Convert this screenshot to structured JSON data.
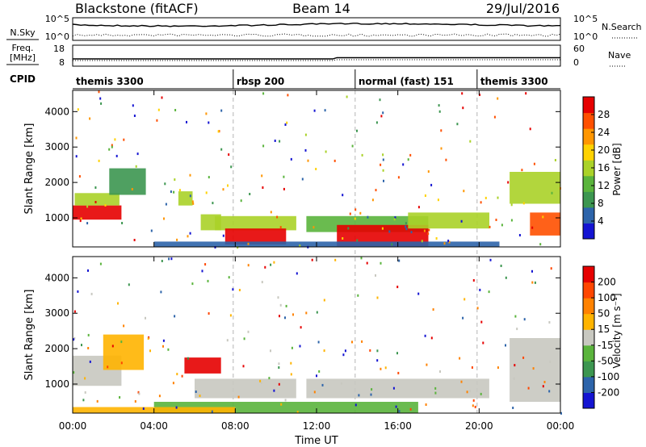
{
  "header": {
    "site": "Blackstone (fitACF)",
    "beam": "Beam 14",
    "date": "29/Jul/2016"
  },
  "colors": {
    "scale_power": [
      "#1414d2",
      "#2d64aa",
      "#3c9650",
      "#5ab43c",
      "#aad228",
      "#ffd200",
      "#ff9600",
      "#ff5000",
      "#e60000"
    ],
    "scale_velocity": [
      "#1414d2",
      "#2d64aa",
      "#3c9650",
      "#5ab43c",
      "#c8c8c0",
      "#ffb400",
      "#ff8200",
      "#ff4600",
      "#e60000"
    ],
    "cpid_divider": "#b4b4b4"
  },
  "info_panels": {
    "left_labels": {
      "nsky": "N.Sky",
      "freq": "Freq.",
      "freq_unit": "[MHz]",
      "cpid": "CPID"
    },
    "right_labels": {
      "nsearch": "N.Search",
      "nave": "Nave"
    },
    "noise_ticks_left": [
      "10^5",
      "10^0"
    ],
    "noise_ticks_right": [
      "10^5",
      "10^0"
    ],
    "freq_ticks": [
      "18",
      "8"
    ],
    "nave_ticks": [
      "60",
      "0"
    ]
  },
  "cpid_segments": [
    {
      "label": "themis 3300",
      "start_hour": 0.0,
      "end_hour": 7.9
    },
    {
      "label": "rbsp 200",
      "start_hour": 7.9,
      "end_hour": 13.9
    },
    {
      "label": "normal (fast) 151",
      "start_hour": 13.9,
      "end_hour": 19.9
    },
    {
      "label": "themis 3300",
      "start_hour": 19.9,
      "end_hour": 24.0
    }
  ],
  "power_panel": {
    "ylabel": "Slant Range [km]",
    "colorbar_label": "Power [dB]",
    "colorbar_ticks": [
      "28",
      "24",
      "20",
      "16",
      "12",
      "8",
      "4"
    ]
  },
  "velocity_panel": {
    "ylabel": "Slant Range [km]",
    "colorbar_label": "Velocity [m s⁻¹]",
    "colorbar_ticks": [
      "200",
      "100",
      "50",
      "15",
      "-15",
      "-50",
      "-100",
      "-200"
    ]
  },
  "chart_data": {
    "type": "heatmap",
    "xlabel": "Time UT",
    "ylabel": "Slant Range [km]",
    "x_ticks": [
      "00:00",
      "04:00",
      "08:00",
      "12:00",
      "16:00",
      "20:00",
      "00:00"
    ],
    "y_ticks": [
      "1000",
      "2000",
      "3000",
      "4000"
    ],
    "xlim": [
      0,
      24
    ],
    "ylim": [
      180,
      4600
    ],
    "power_regions": [
      {
        "t": [
          0.0,
          2.4
        ],
        "r": [
          950,
          1350
        ],
        "level": 8
      },
      {
        "t": [
          0.1,
          2.3
        ],
        "r": [
          1350,
          1700
        ],
        "level": 4
      },
      {
        "t": [
          1.8,
          3.6
        ],
        "r": [
          1650,
          2400
        ],
        "level": 2
      },
      {
        "t": [
          5.2,
          5.9
        ],
        "r": [
          1350,
          1750
        ],
        "level": 4
      },
      {
        "t": [
          6.3,
          7.3
        ],
        "r": [
          650,
          1100
        ],
        "level": 4
      },
      {
        "t": [
          7.0,
          11.0
        ],
        "r": [
          650,
          1050
        ],
        "level": 4
      },
      {
        "t": [
          7.5,
          10.5
        ],
        "r": [
          250,
          700
        ],
        "level": 8
      },
      {
        "t": [
          11.5,
          17.5
        ],
        "r": [
          600,
          1050
        ],
        "level": 3
      },
      {
        "t": [
          13.0,
          17.5
        ],
        "r": [
          200,
          800
        ],
        "level": 8
      },
      {
        "t": [
          16.5,
          20.5
        ],
        "r": [
          700,
          1150
        ],
        "level": 4
      },
      {
        "t": [
          21.5,
          24.0
        ],
        "r": [
          1400,
          2300
        ],
        "level": 4
      },
      {
        "t": [
          22.5,
          24.0
        ],
        "r": [
          500,
          1150
        ],
        "level": 7
      },
      {
        "t": [
          4.0,
          21.0
        ],
        "r": [
          180,
          330
        ],
        "level": 1
      }
    ],
    "velocity_regions": [
      {
        "t": [
          0.0,
          2.4
        ],
        "r": [
          950,
          1800
        ],
        "level": 4
      },
      {
        "t": [
          1.5,
          3.5
        ],
        "r": [
          1400,
          2400
        ],
        "level": 5
      },
      {
        "t": [
          5.5,
          7.3
        ],
        "r": [
          1300,
          1750
        ],
        "level": 8
      },
      {
        "t": [
          6.0,
          11.0
        ],
        "r": [
          600,
          1150
        ],
        "level": 4
      },
      {
        "t": [
          11.5,
          20.5
        ],
        "r": [
          600,
          1150
        ],
        "level": 4
      },
      {
        "t": [
          21.5,
          24.0
        ],
        "r": [
          500,
          2300
        ],
        "level": 4
      },
      {
        "t": [
          4.0,
          17.0
        ],
        "r": [
          180,
          500
        ],
        "level": 3
      },
      {
        "t": [
          0.0,
          8.0
        ],
        "r": [
          180,
          350
        ],
        "level": 5
      }
    ]
  }
}
